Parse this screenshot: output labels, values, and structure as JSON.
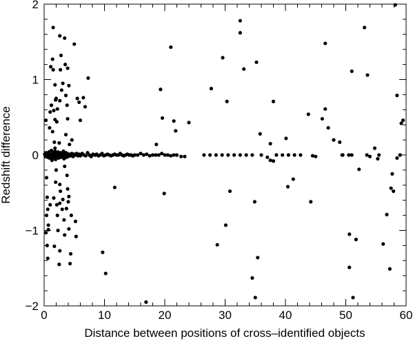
{
  "chart_data": {
    "type": "scatter",
    "xlabel": "Distance between positions of cross–identified objects",
    "ylabel": "Redshift difference",
    "xlim": [
      0,
      60
    ],
    "ylim": [
      -2,
      2
    ],
    "x_ticks": [
      0,
      10,
      20,
      30,
      40,
      50,
      60
    ],
    "y_ticks": [
      -2,
      -1,
      0,
      1,
      2
    ],
    "y_tick_labels": [
      "−2",
      "−1",
      "0",
      "1",
      "2"
    ],
    "grid": false,
    "marker_color": "#000000",
    "points": [
      [
        0.3,
        0.46
      ],
      [
        0.4,
        -0.3
      ],
      [
        0.5,
        -0.56
      ],
      [
        0.4,
        -0.8
      ],
      [
        0.5,
        -1.2
      ],
      [
        0.6,
        -1.37
      ],
      [
        0.3,
        -1.03
      ],
      [
        0.7,
        -0.93
      ],
      [
        0.6,
        -0.72
      ],
      [
        0.9,
        0.36
      ],
      [
        1.0,
        0.57
      ],
      [
        1.2,
        0.66
      ],
      [
        1.0,
        -0.66
      ],
      [
        1.3,
        -0.07
      ],
      [
        0.7,
        -0.99
      ],
      [
        1.5,
        1.69
      ],
      [
        1.4,
        1.27
      ],
      [
        1.1,
        1.17
      ],
      [
        1.5,
        1.13
      ],
      [
        1.8,
        0.93
      ],
      [
        1.9,
        0.73
      ],
      [
        1.6,
        0.59
      ],
      [
        1.8,
        0.47
      ],
      [
        1.4,
        0.31
      ],
      [
        1.7,
        0.17
      ],
      [
        1.8,
        0.09
      ],
      [
        2.0,
        -0.2
      ],
      [
        1.9,
        -0.36
      ],
      [
        1.6,
        -0.57
      ],
      [
        2.1,
        -0.66
      ],
      [
        2.2,
        -0.8
      ],
      [
        2.3,
        -1.0
      ],
      [
        1.7,
        -1.21
      ],
      [
        2.5,
        -1.45
      ],
      [
        2.0,
        0.75
      ],
      [
        2.2,
        0.61
      ],
      [
        2.1,
        0.44
      ],
      [
        2.6,
        1.58
      ],
      [
        2.8,
        1.32
      ],
      [
        2.7,
        1.13
      ],
      [
        3.1,
        0.95
      ],
      [
        2.9,
        0.86
      ],
      [
        2.6,
        0.72
      ],
      [
        2.5,
        0.16
      ],
      [
        2.6,
        -0.39
      ],
      [
        2.7,
        -0.48
      ],
      [
        3.1,
        -0.59
      ],
      [
        2.6,
        -0.64
      ],
      [
        3.0,
        -0.72
      ],
      [
        3.3,
        -0.86
      ],
      [
        3.4,
        -1.06
      ],
      [
        2.6,
        -1.27
      ],
      [
        3.4,
        1.55
      ],
      [
        3.5,
        1.2
      ],
      [
        3.9,
        1.15
      ],
      [
        4.1,
        0.92
      ],
      [
        3.6,
        0.79
      ],
      [
        3.8,
        0.66
      ],
      [
        3.9,
        0.48
      ],
      [
        3.6,
        0.27
      ],
      [
        4.2,
        0.14
      ],
      [
        3.4,
        -0.15
      ],
      [
        3.8,
        -0.27
      ],
      [
        3.9,
        -0.45
      ],
      [
        4.1,
        -0.55
      ],
      [
        4.0,
        -0.62
      ],
      [
        3.7,
        -0.71
      ],
      [
        4.5,
        -0.8
      ],
      [
        4.1,
        -0.98
      ],
      [
        4.4,
        -1.31
      ],
      [
        4.3,
        -1.44
      ],
      [
        5.0,
        1.47
      ],
      [
        5.5,
        0.75
      ],
      [
        5.8,
        0.7
      ],
      [
        6.0,
        0.46
      ],
      [
        6.5,
        0.76
      ],
      [
        6.8,
        0.64
      ],
      [
        7.3,
        1.02
      ],
      [
        4.6,
        0.2
      ],
      [
        5.2,
        -0.88
      ],
      [
        5.3,
        -1.08
      ],
      [
        8.5,
        0.0
      ],
      [
        9.7,
        -1.29
      ],
      [
        10.2,
        -1.57
      ],
      [
        11.7,
        -0.43
      ],
      [
        16.9,
        -1.95
      ],
      [
        18.6,
        0.14
      ],
      [
        19.3,
        0.87
      ],
      [
        19.6,
        0.49
      ],
      [
        19.9,
        -0.51
      ],
      [
        21.0,
        1.43
      ],
      [
        21.5,
        0.45
      ],
      [
        21.8,
        0.32
      ],
      [
        24.0,
        0.43
      ],
      [
        23.3,
        -0.02
      ],
      [
        27.7,
        0.88
      ],
      [
        28.7,
        -1.19
      ],
      [
        29.6,
        1.29
      ],
      [
        30.1,
        -0.93
      ],
      [
        30.3,
        0.71
      ],
      [
        30.8,
        -0.48
      ],
      [
        32.5,
        1.78
      ],
      [
        32.5,
        1.62
      ],
      [
        33.1,
        1.14
      ],
      [
        34.5,
        -1.63
      ],
      [
        34.9,
        -0.62
      ],
      [
        35.0,
        -1.89
      ],
      [
        35.2,
        1.23
      ],
      [
        35.4,
        -1.36
      ],
      [
        35.8,
        0.28
      ],
      [
        37.5,
        0.15
      ],
      [
        37.5,
        -0.07
      ],
      [
        38.0,
        0.71
      ],
      [
        40.1,
        0.22
      ],
      [
        40.4,
        -0.42
      ],
      [
        41.3,
        -0.32
      ],
      [
        43.8,
        0.54
      ],
      [
        44.2,
        -0.62
      ],
      [
        46.1,
        0.48
      ],
      [
        46.6,
        1.48
      ],
      [
        46.6,
        0.61
      ],
      [
        47.1,
        0.36
      ],
      [
        48.0,
        0.2
      ],
      [
        49.0,
        0.17
      ],
      [
        49.4,
        0.0
      ],
      [
        50.6,
        -1.05
      ],
      [
        50.6,
        -1.49
      ],
      [
        51.0,
        1.11
      ],
      [
        51.2,
        -1.89
      ],
      [
        51.7,
        -1.12
      ],
      [
        52.2,
        -0.19
      ],
      [
        53.1,
        1.69
      ],
      [
        53.6,
        1.06
      ],
      [
        54.8,
        0.09
      ],
      [
        55.3,
        -0.05
      ],
      [
        56.2,
        -1.18
      ],
      [
        56.8,
        -0.79
      ],
      [
        57.3,
        -1.51
      ],
      [
        57.5,
        -0.44
      ],
      [
        57.9,
        -0.48
      ],
      [
        57.7,
        -0.25
      ],
      [
        58.2,
        1.99
      ],
      [
        58.5,
        0.79
      ],
      [
        59.2,
        0.42
      ],
      [
        59.5,
        0.46
      ],
      [
        59.0,
        0.0
      ]
    ],
    "cluster_near_zero": {
      "x": [
        0.1,
        0.2,
        0.3,
        0.4,
        0.5,
        0.6,
        0.7,
        0.8,
        0.9,
        1.0,
        1.1,
        1.2,
        1.3,
        1.4,
        1.5,
        1.6,
        1.7,
        1.8,
        1.9,
        2.0,
        2.1,
        2.2,
        2.3,
        2.4,
        2.5,
        2.6,
        2.7,
        2.8,
        2.9,
        3.0,
        3.1,
        3.2,
        3.3,
        3.4,
        3.5,
        3.6,
        3.7,
        3.8,
        3.9,
        4.0,
        4.2,
        4.4,
        4.6,
        4.8,
        5.0,
        5.2,
        5.4,
        5.6,
        5.8,
        6.0,
        6.3,
        6.6,
        6.9,
        7.2,
        7.5,
        7.8,
        8.1,
        8.4,
        8.7,
        9.0,
        9.3,
        9.6,
        9.9,
        10.2,
        10.5,
        10.8,
        11.1,
        11.4,
        11.7,
        12.0,
        12.3,
        12.6,
        12.9,
        13.2,
        13.5,
        13.8,
        14.1,
        14.4,
        14.7,
        15.0,
        15.5,
        16.0,
        16.5,
        17.0,
        17.5,
        18.0,
        18.5,
        19.0,
        19.5,
        20.0,
        20.5,
        21.0,
        21.5,
        22.0,
        22.7,
        26.5,
        27.5,
        28.5,
        29.5,
        30.5,
        31.5,
        32.5,
        33.5,
        34.5,
        36.0,
        37.0,
        38.0,
        38.5,
        39.5,
        40.5,
        41.5,
        42.5,
        44.5,
        45.0,
        49.5,
        50.5,
        51.0,
        53.5,
        54.0,
        55.5,
        58.5,
        59.0
      ],
      "y": [
        0.01,
        -0.02,
        0.03,
        -0.01,
        0.02,
        -0.03,
        0.0,
        0.04,
        -0.04,
        0.01,
        -0.02,
        0.06,
        -0.05,
        0.02,
        -0.01,
        0.03,
        -0.03,
        0.05,
        -0.06,
        0.0,
        0.02,
        -0.02,
        0.04,
        -0.04,
        0.01,
        -0.01,
        0.03,
        -0.03,
        0.02,
        -0.02,
        0.0,
        0.05,
        -0.05,
        0.01,
        -0.01,
        0.03,
        -0.03,
        0.02,
        0.0,
        -0.02,
        0.01,
        -0.01,
        0.02,
        -0.02,
        0.01,
        0.0,
        0.02,
        -0.01,
        0.01,
        -0.01,
        0.02,
        0.0,
        -0.01,
        0.03,
        0.0,
        -0.02,
        0.01,
        0.0,
        0.01,
        -0.01,
        0.0,
        0.02,
        -0.01,
        0.0,
        0.01,
        0.0,
        -0.01,
        0.0,
        0.01,
        0.0,
        0.0,
        0.02,
        0.0,
        -0.01,
        0.0,
        0.01,
        0.0,
        0.0,
        -0.01,
        0.0,
        0.0,
        0.02,
        0.0,
        0.01,
        -0.01,
        0.0,
        0.0,
        0.0,
        0.02,
        0.0,
        0.0,
        -0.01,
        0.0,
        0.0,
        -0.02,
        0.0,
        0.0,
        0.0,
        0.0,
        0.0,
        0.0,
        0.0,
        0.0,
        0.0,
        0.0,
        -0.03,
        -0.08,
        0.0,
        0.0,
        0.0,
        0.0,
        0.0,
        -0.01,
        -0.02,
        0.0,
        0.0,
        0.0,
        0.0,
        -0.02,
        0.0,
        -0.04,
        0.0
      ]
    }
  }
}
